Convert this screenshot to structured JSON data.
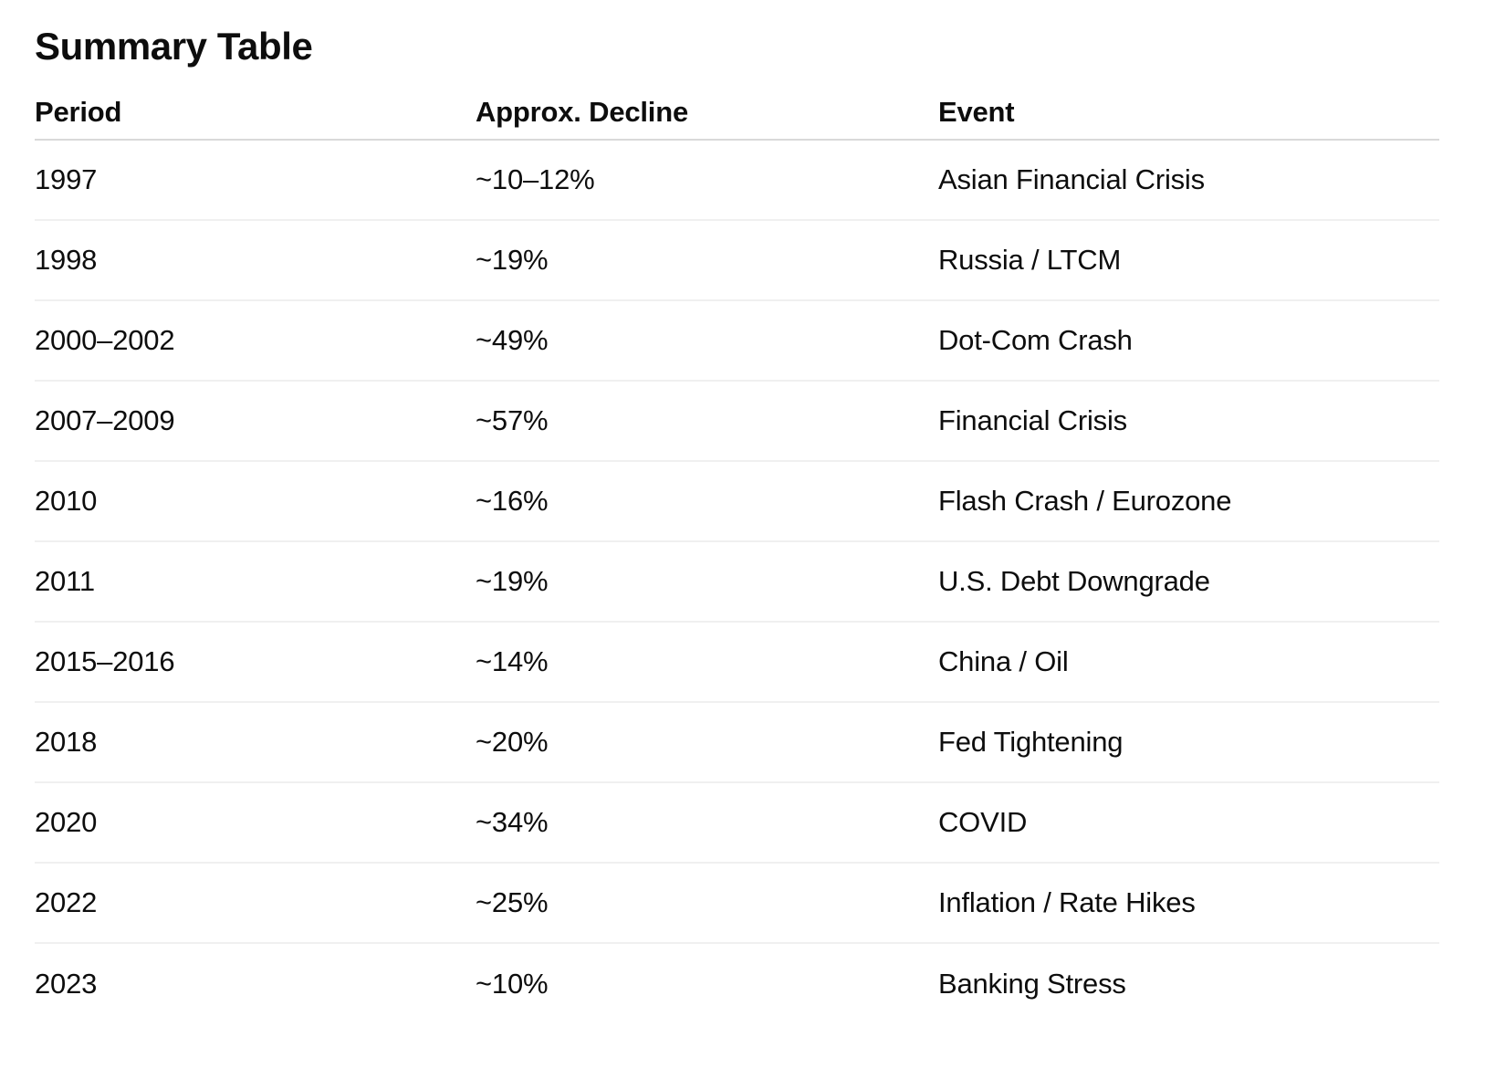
{
  "title": "Summary Table",
  "colors": {
    "text": "#0d0d0d",
    "header_divider": "#d9d9d9",
    "row_divider": "#f0f0f0",
    "background": "#ffffff"
  },
  "table": {
    "columns": [
      {
        "label": "Period"
      },
      {
        "label": "Approx. Decline"
      },
      {
        "label": "Event"
      }
    ],
    "rows": [
      {
        "period": "1997",
        "decline": "~10–12%",
        "event": "Asian Financial Crisis"
      },
      {
        "period": "1998",
        "decline": "~19%",
        "event": "Russia / LTCM"
      },
      {
        "period": "2000–2002",
        "decline": "~49%",
        "event": "Dot-Com Crash"
      },
      {
        "period": "2007–2009",
        "decline": "~57%",
        "event": "Financial Crisis"
      },
      {
        "period": "2010",
        "decline": "~16%",
        "event": "Flash Crash / Eurozone"
      },
      {
        "period": "2011",
        "decline": "~19%",
        "event": "U.S. Debt Downgrade"
      },
      {
        "period": "2015–2016",
        "decline": "~14%",
        "event": "China / Oil"
      },
      {
        "period": "2018",
        "decline": "~20%",
        "event": "Fed Tightening"
      },
      {
        "period": "2020",
        "decline": "~34%",
        "event": "COVID"
      },
      {
        "period": "2022",
        "decline": "~25%",
        "event": "Inflation / Rate Hikes"
      },
      {
        "period": "2023",
        "decline": "~10%",
        "event": "Banking Stress"
      }
    ]
  }
}
